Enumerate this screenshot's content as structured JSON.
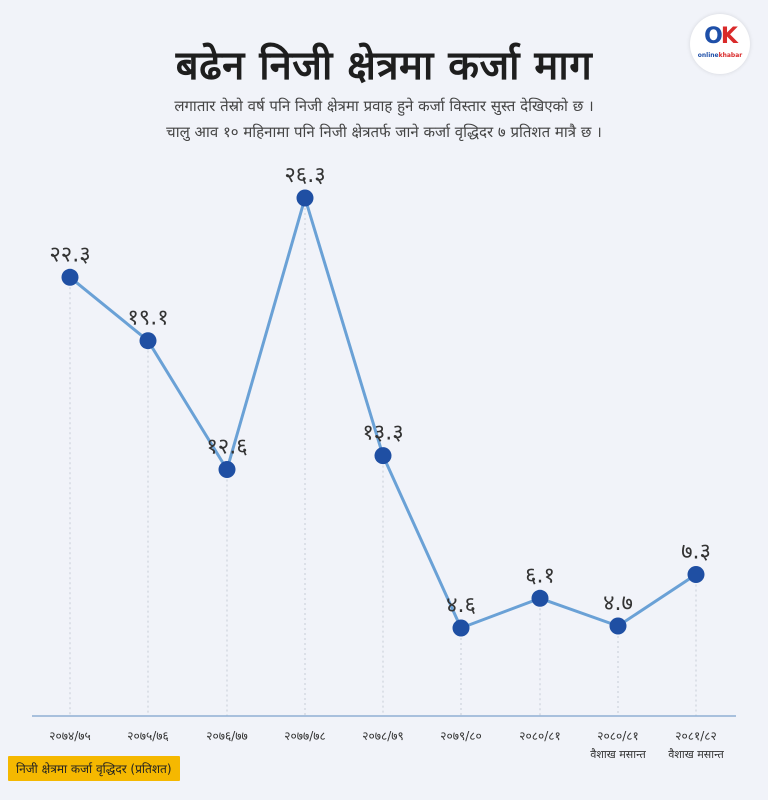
{
  "header": {
    "title": "बढेन निजी क्षेत्रमा कर्जा माग",
    "subtitle_line1": "लगातार तेस्रो वर्ष पनि निजी क्षेत्रमा प्रवाह हुने कर्जा विस्तार सुस्त देखिएको छ ।",
    "subtitle_line2": "चालु आव १० महिनामा पनि निजी क्षेत्रतर्फ जाने कर्जा वृद्धिदर ७ प्रतिशत मात्रै छ ।"
  },
  "logo": {
    "mark_o": "O",
    "mark_k": "K",
    "text_online": "online",
    "text_khabar": "khabar"
  },
  "legend": {
    "label": "निजी क्षेत्रमा कर्जा वृद्धिदर  (प्रतिशत)"
  },
  "colors": {
    "line": "#6aa1d6",
    "point": "#1f4fa3",
    "legend_bg": "#f5b800",
    "background": "#f1f3f9"
  },
  "chart_data": {
    "type": "line",
    "categories": [
      "२०७४/७५",
      "२०७५/७६",
      "२०७६/७७",
      "२०७७/७८",
      "२०७८/७९",
      "२०७९/८०",
      "२०८०/८१",
      "२०८०/८१",
      "२०८१/८२"
    ],
    "category_sublabels": [
      "",
      "",
      "",
      "",
      "",
      "",
      "",
      "वैशाख मसान्त",
      "वैशाख मसान्त"
    ],
    "values": [
      22.3,
      19.1,
      12.6,
      26.3,
      13.3,
      4.6,
      6.1,
      4.7,
      7.3
    ],
    "value_labels": [
      "२२.३",
      "१९.१",
      "१२.६",
      "२६.३",
      "१३.३",
      "४.६",
      "६.१",
      "४.७",
      "७.३"
    ],
    "title": "बढेन निजी क्षेत्रमा कर्जा माग",
    "series": [
      {
        "name": "निजी क्षेत्रमा कर्जा वृद्धिदर  (प्रतिशत)",
        "values": [
          22.3,
          19.1,
          12.6,
          26.3,
          13.3,
          4.6,
          6.1,
          4.7,
          7.3
        ]
      }
    ],
    "ylim": [
      0,
      30
    ],
    "grid": "vertical-dotted",
    "legend_position": "bottom-left"
  }
}
